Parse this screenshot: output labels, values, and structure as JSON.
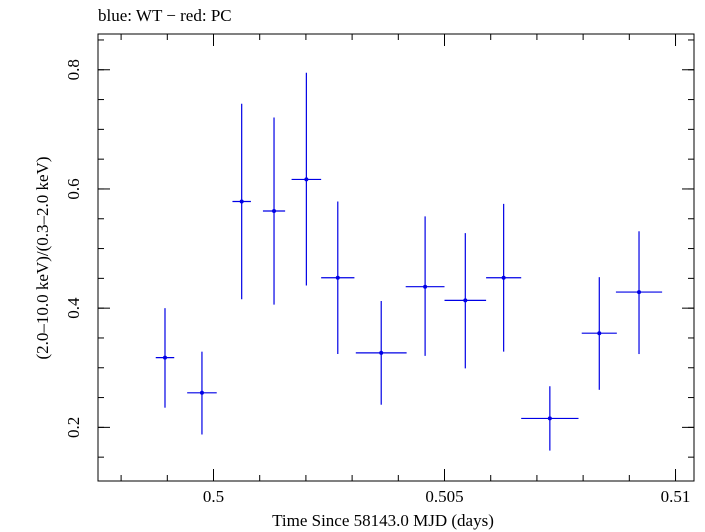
{
  "chart_data": {
    "type": "scatter",
    "title": "blue: WT − red: PC",
    "xlabel": "Time Since 58143.0 MJD (days)",
    "ylabel": "(2.0–10.0 keV)/(0.3–2.0 keV)",
    "xlim": [
      0.4975,
      0.5104
    ],
    "ylim": [
      0.11,
      0.86
    ],
    "x_major_ticks": [
      0.5,
      0.505,
      0.51
    ],
    "x_tick_labels": [
      "0.5",
      "0.505",
      "0.51"
    ],
    "x_minor_step": 0.001,
    "y_major_ticks": [
      0.2,
      0.4,
      0.6,
      0.8
    ],
    "y_tick_labels": [
      "0.2",
      "0.4",
      "0.6",
      "0.8"
    ],
    "y_minor_step": 0.05,
    "grid": false,
    "series": [
      {
        "name": "WT",
        "color": "#0000e6",
        "points": [
          {
            "x": 0.49895,
            "xerr": 0.0002,
            "y": 0.317,
            "ylo": 0.233,
            "yhi": 0.4
          },
          {
            "x": 0.49975,
            "xerr": 0.00032,
            "y": 0.258,
            "ylo": 0.188,
            "yhi": 0.327
          },
          {
            "x": 0.50061,
            "xerr": 0.0002,
            "y": 0.579,
            "ylo": 0.415,
            "yhi": 0.743
          },
          {
            "x": 0.50131,
            "xerr": 0.00024,
            "y": 0.563,
            "ylo": 0.406,
            "yhi": 0.72
          },
          {
            "x": 0.50201,
            "xerr": 0.00032,
            "y": 0.616,
            "ylo": 0.438,
            "yhi": 0.795
          },
          {
            "x": 0.50269,
            "xerr": 0.00036,
            "y": 0.451,
            "ylo": 0.323,
            "yhi": 0.579
          },
          {
            "x": 0.50363,
            "xerr": 0.00055,
            "y": 0.325,
            "ylo": 0.238,
            "yhi": 0.412
          },
          {
            "x": 0.50458,
            "xerr": 0.00042,
            "y": 0.436,
            "ylo": 0.32,
            "yhi": 0.554
          },
          {
            "x": 0.50545,
            "xerr": 0.00045,
            "y": 0.413,
            "ylo": 0.299,
            "yhi": 0.526
          },
          {
            "x": 0.50628,
            "xerr": 0.00038,
            "y": 0.451,
            "ylo": 0.327,
            "yhi": 0.575
          },
          {
            "x": 0.50728,
            "xerr": 0.00062,
            "y": 0.215,
            "ylo": 0.161,
            "yhi": 0.269
          },
          {
            "x": 0.50835,
            "xerr": 0.00038,
            "y": 0.358,
            "ylo": 0.263,
            "yhi": 0.452
          },
          {
            "x": 0.50921,
            "xerr": 0.0005,
            "y": 0.427,
            "ylo": 0.323,
            "yhi": 0.529
          }
        ]
      }
    ]
  }
}
